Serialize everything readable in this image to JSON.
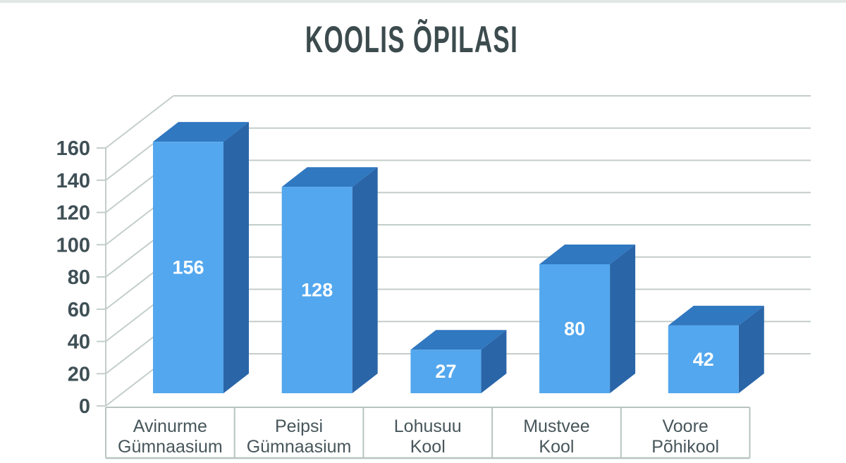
{
  "page": {
    "background_color": "#ffffff",
    "top_edge_color": "#e1e8e4"
  },
  "chart_data": {
    "type": "bar",
    "style": "3d-column",
    "title": "KOOLIS ÕPILASI",
    "categories": [
      "Avinurme Gümnaasium",
      "Peipsi Gümnaasium",
      "Lohusuu Kool",
      "Mustvee Kool",
      "Voore Põhikool"
    ],
    "category_lines": [
      [
        "Avinurme",
        "Gümnaasium"
      ],
      [
        "Peipsi",
        "Gümnaasium"
      ],
      [
        "Lohusuu",
        "Kool"
      ],
      [
        "Mustvee",
        "Kool"
      ],
      [
        "Voore",
        "Põhikool"
      ]
    ],
    "values": [
      156,
      128,
      27,
      80,
      42
    ],
    "data_labels": [
      "156",
      "128",
      "27",
      "80",
      "42"
    ],
    "xlabel": "",
    "ylabel": "",
    "ylim": [
      0,
      160
    ],
    "ytick_step": 20,
    "yticks": [
      0,
      20,
      40,
      60,
      80,
      100,
      120,
      140,
      160
    ],
    "grid": true,
    "legend_position": "none",
    "colors": {
      "bar_front": "#53a7ee",
      "bar_top": "#3078c0",
      "bar_side": "#2a65a8",
      "grid_line": "#c3cec9",
      "row_border": "#b7c4bf",
      "axis_text": "#3f5056",
      "category_text": "#47565b",
      "title_text": "#3c4b4e",
      "value_text": "#ffffff"
    }
  }
}
